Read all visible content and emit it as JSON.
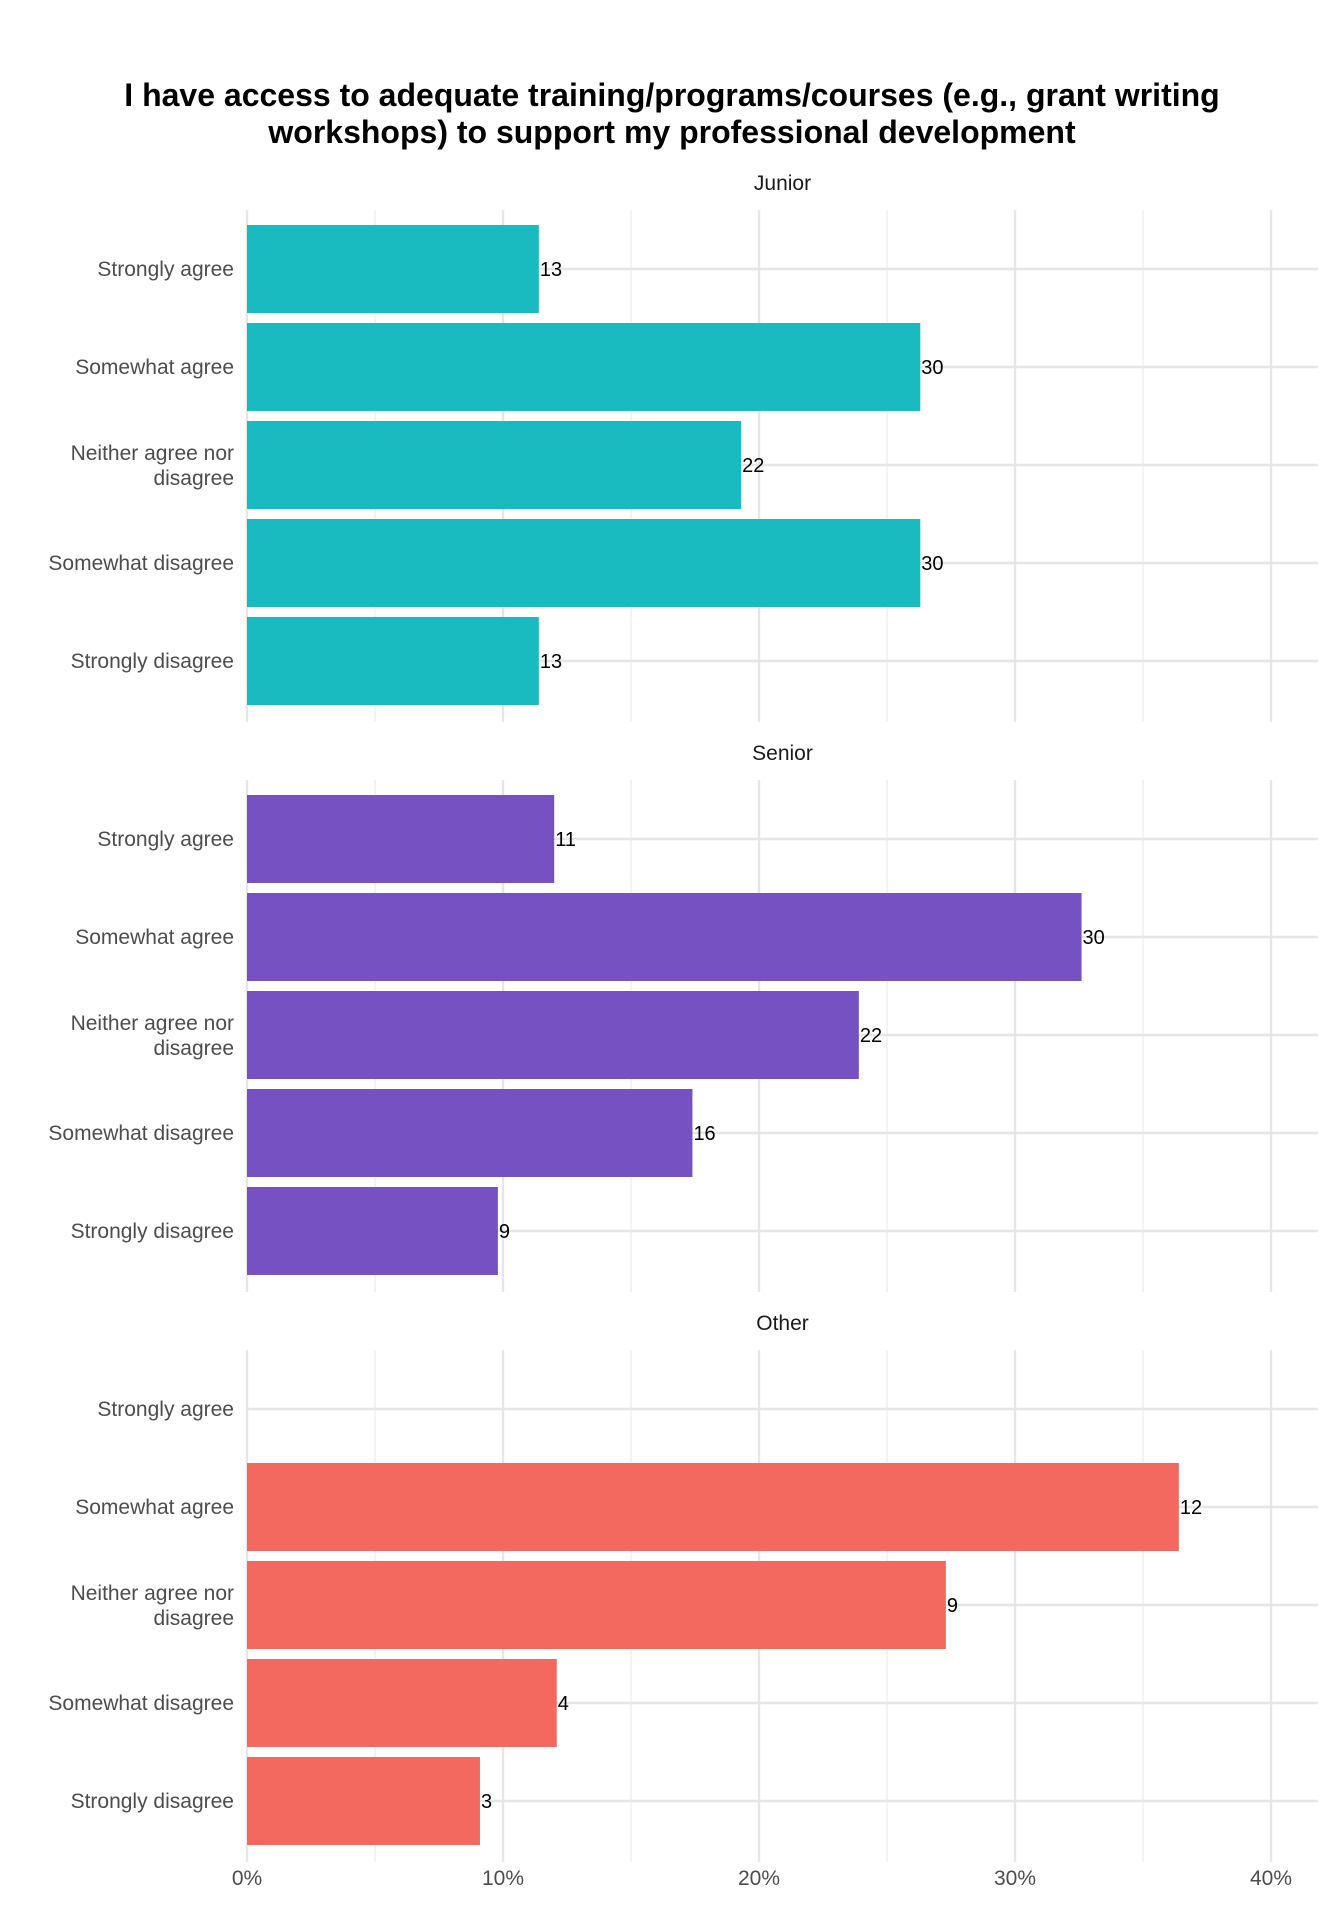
{
  "chart_data": {
    "type": "bar",
    "orientation": "horizontal",
    "title": "I have access to adequate training/programs/courses (e.g., grant writing workshops) to support my professional development",
    "title_lines": [
      "I have access to adequate training/programs/courses (e.g., grant writing",
      "workshops) to support my professional development"
    ],
    "categories": [
      "Strongly agree",
      "Somewhat agree",
      "Neither agree nor disagree",
      "Somewhat disagree",
      "Strongly disagree"
    ],
    "category_lines": [
      [
        "Strongly agree"
      ],
      [
        "Somewhat agree"
      ],
      [
        "Neither agree nor",
        "disagree"
      ],
      [
        "Somewhat disagree"
      ],
      [
        "Strongly disagree"
      ]
    ],
    "xlim": [
      0,
      42
    ],
    "x_ticks": [
      0,
      10,
      20,
      30,
      40
    ],
    "x_tick_labels": [
      "0%",
      "10%",
      "20%",
      "30%",
      "40%"
    ],
    "grid": true,
    "legend": "none",
    "panels": [
      {
        "name": "Junior",
        "color": "#1ABAC1",
        "percent": [
          11.4,
          26.3,
          19.3,
          26.3,
          11.4
        ],
        "counts": [
          "13",
          "30",
          "22",
          "30",
          "13"
        ]
      },
      {
        "name": "Senior",
        "color": "#7551C1",
        "percent": [
          12.0,
          32.6,
          23.9,
          17.4,
          9.8
        ],
        "counts": [
          "11",
          "30",
          "22",
          "16",
          "9"
        ]
      },
      {
        "name": "Other",
        "color": "#F4695F",
        "percent": [
          null,
          36.4,
          27.3,
          12.1,
          9.1
        ],
        "counts": [
          null,
          "12",
          "9",
          "4",
          "3"
        ]
      }
    ]
  }
}
